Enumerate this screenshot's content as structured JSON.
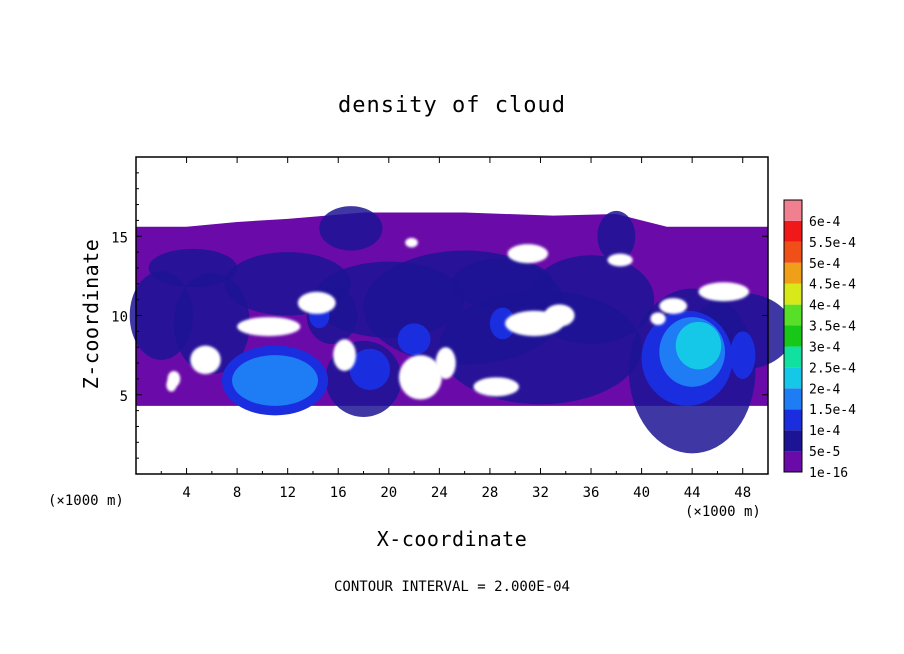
{
  "chart_data": {
    "type": "heatmap",
    "title": "density of cloud",
    "xlabel": "X-coordinate",
    "ylabel": "Z-coordinate",
    "x_unit": "(×1000 m)",
    "xlim": [
      0,
      50
    ],
    "ylim": [
      0,
      20
    ],
    "x_ticks": [
      "4",
      "8",
      "12",
      "16",
      "20",
      "24",
      "28",
      "32",
      "36",
      "40",
      "44",
      "48"
    ],
    "y_ticks": [
      "5",
      "10",
      "15"
    ],
    "contour_interval_label": "CONTOUR INTERVAL = 2.000E-04",
    "colorbar": {
      "labels": [
        "1e-16",
        "5e-5",
        "1e-4",
        "1.5e-4",
        "2e-4",
        "2.5e-4",
        "3e-4",
        "3.5e-4",
        "4e-4",
        "4.5e-4",
        "5e-4",
        "5.5e-4",
        "6e-4"
      ],
      "levels": [
        1e-16,
        5e-05,
        0.0001,
        0.00015,
        0.0002,
        0.00025,
        0.0003,
        0.00035,
        0.0004,
        0.00045,
        0.0005,
        0.00055,
        0.0006
      ],
      "colors": [
        "#6a0aa8",
        "#1c1494",
        "#1a2ee0",
        "#1e7cf5",
        "#16c8e8",
        "#10e0a0",
        "#18c818",
        "#58e028",
        "#d8e818",
        "#f0a018",
        "#f05018",
        "#f01818",
        "#f08090"
      ]
    },
    "cloud_layer": {
      "z_base": 4.3,
      "z_top": 16.5,
      "background_level": 1e-16
    },
    "maxima": [
      {
        "x": 44,
        "z": 7.5,
        "value": 0.00018
      },
      {
        "x": 11,
        "z": 5.9,
        "value": 0.00013
      },
      {
        "x": 18.5,
        "z": 6.6,
        "value": 0.00011
      },
      {
        "x": 22,
        "z": 8.5,
        "value": 0.00011
      }
    ]
  },
  "colors": {
    "background": "#ffffff",
    "axis": "#000000"
  }
}
